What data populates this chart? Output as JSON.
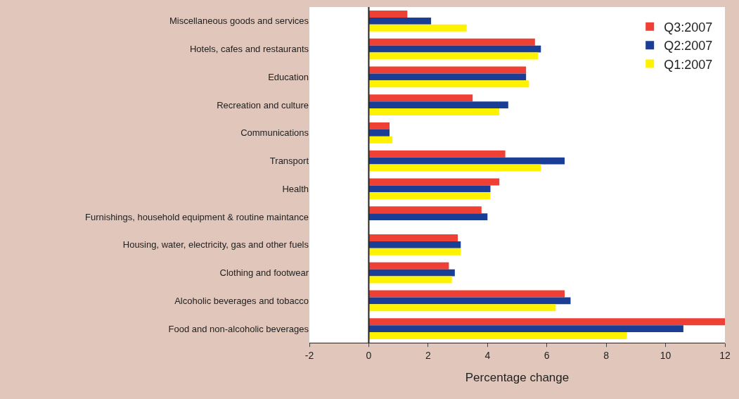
{
  "chart_data": {
    "type": "bar",
    "orientation": "horizontal",
    "xlabel": "Percentage change",
    "categories": [
      "Miscellaneous goods and services",
      "Hotels, cafes and restaurants",
      "Education",
      "Recreation and culture",
      "Communications",
      "Transport",
      "Health",
      "Furnishings, household equipment & routine maintance",
      "Housing, water, electricity, gas and other fuels",
      "Clothing and footwear",
      "Alcoholic beverages and tobacco",
      "Food and non-alcoholic beverages"
    ],
    "series": [
      {
        "name": "Q3:2007",
        "color": "#ee4035",
        "values": [
          1.3,
          5.6,
          5.3,
          3.5,
          0.7,
          4.6,
          4.4,
          3.8,
          3.0,
          2.7,
          6.6,
          12.0
        ]
      },
      {
        "name": "Q2:2007",
        "color": "#1a3e96",
        "values": [
          2.1,
          5.8,
          5.3,
          4.7,
          0.7,
          6.6,
          4.1,
          4.0,
          3.1,
          2.9,
          6.8,
          10.6
        ]
      },
      {
        "name": "Q1:2007",
        "color": "#fff200",
        "values": [
          3.3,
          5.7,
          5.4,
          4.4,
          0.8,
          5.8,
          4.1,
          null,
          3.1,
          2.8,
          6.3,
          8.7
        ]
      }
    ],
    "xlim": [
      -2,
      12
    ],
    "xticks": [
      -2,
      0,
      2,
      4,
      6,
      8,
      10,
      12
    ],
    "grid": false,
    "ref_lines": [
      {
        "axis": "x",
        "value": 0,
        "color": "#222222"
      }
    ],
    "legend": "top right"
  }
}
